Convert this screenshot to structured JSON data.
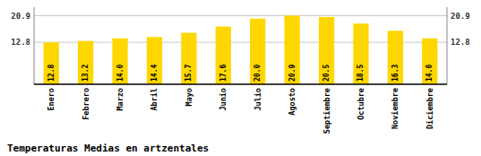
{
  "chart_data": {
    "type": "bar",
    "title": "Temperaturas Medias en artzentales",
    "categories": [
      "Enero",
      "Febrero",
      "Marzo",
      "Abril",
      "Mayo",
      "Junio",
      "Julio",
      "Agosto",
      "Septiembre",
      "Octubre",
      "Noviembre",
      "Diciembre"
    ],
    "values": [
      12.8,
      13.2,
      14.0,
      14.4,
      15.7,
      17.6,
      20.0,
      20.9,
      20.5,
      18.5,
      16.3,
      14.0
    ],
    "value_labels": [
      "12.8",
      "13.2",
      "14.0",
      "14.4",
      "15.7",
      "17.6",
      "20.0",
      "20.9",
      "20.5",
      "18.5",
      "16.3",
      "14.0"
    ],
    "color": "#FFD700",
    "ylim": [
      0.0,
      23.5
    ],
    "yticks": [
      12.8,
      20.9
    ],
    "grid": true,
    "data_labels": true
  }
}
